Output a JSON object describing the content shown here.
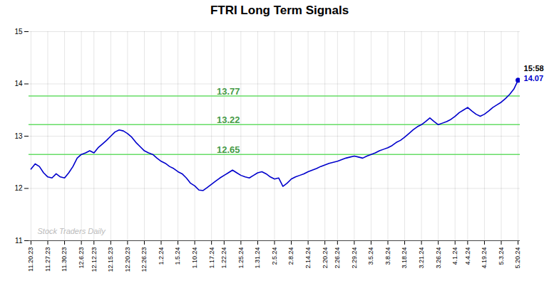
{
  "chart_data": {
    "type": "line",
    "title": "FTRI Long Term Signals",
    "categories": [
      "11.20.23",
      null,
      null,
      null,
      "11.27.23",
      null,
      null,
      null,
      "11.30.23",
      null,
      null,
      null,
      "12.6.23",
      null,
      null,
      "12.12.23",
      null,
      null,
      null,
      "12.15.23",
      null,
      null,
      null,
      "12.20.23",
      null,
      null,
      null,
      "12.26.23",
      null,
      null,
      null,
      "1.2.24",
      null,
      null,
      null,
      "1.5.24",
      null,
      null,
      null,
      "1.10.24",
      null,
      null,
      null,
      "1.17.24",
      null,
      null,
      "1.22.24",
      null,
      null,
      null,
      "1.25.24",
      null,
      null,
      null,
      "1.31.24",
      null,
      null,
      null,
      "2.5.24",
      null,
      null,
      null,
      "2.8.24",
      null,
      null,
      null,
      "2.14.24",
      null,
      null,
      null,
      "2.20.24",
      null,
      null,
      "2.26.24",
      null,
      null,
      null,
      "2.29.24",
      null,
      null,
      null,
      "3.5.24",
      null,
      null,
      null,
      "3.8.24",
      null,
      null,
      null,
      "3.18.24",
      null,
      null,
      null,
      "3.21.24",
      null,
      null,
      null,
      "3.26.24",
      null,
      null,
      null,
      "4.1.24",
      null,
      null,
      "4.4.24",
      null,
      null,
      null,
      "4.19.24",
      null,
      null,
      null,
      "5.3.24",
      null,
      null,
      null,
      "5.20.24"
    ],
    "values": [
      12.37,
      12.47,
      12.42,
      12.3,
      12.22,
      12.2,
      12.28,
      12.22,
      12.2,
      12.3,
      12.42,
      12.58,
      12.65,
      12.68,
      12.72,
      12.68,
      12.78,
      12.85,
      12.92,
      13.0,
      13.08,
      13.12,
      13.1,
      13.05,
      12.98,
      12.88,
      12.8,
      12.72,
      12.68,
      12.65,
      12.58,
      12.52,
      12.48,
      12.42,
      12.38,
      12.32,
      12.28,
      12.2,
      12.1,
      12.05,
      11.97,
      11.96,
      12.02,
      12.08,
      12.14,
      12.2,
      12.25,
      12.3,
      12.35,
      12.3,
      12.25,
      12.22,
      12.2,
      12.25,
      12.3,
      12.32,
      12.28,
      12.22,
      12.18,
      12.2,
      12.04,
      12.1,
      12.18,
      12.22,
      12.25,
      12.28,
      12.32,
      12.35,
      12.38,
      12.42,
      12.45,
      12.48,
      12.5,
      12.52,
      12.55,
      12.58,
      12.6,
      12.62,
      12.6,
      12.58,
      12.62,
      12.65,
      12.68,
      12.72,
      12.75,
      12.78,
      12.82,
      12.88,
      12.92,
      12.98,
      13.05,
      13.12,
      13.18,
      13.22,
      13.28,
      13.35,
      13.28,
      13.22,
      13.25,
      13.28,
      13.32,
      13.38,
      13.45,
      13.5,
      13.55,
      13.48,
      13.42,
      13.38,
      13.42,
      13.48,
      13.55,
      13.6,
      13.65,
      13.72,
      13.8,
      13.9,
      14.07
    ],
    "color": "#0000cc",
    "ylim": [
      11,
      15
    ],
    "yticks": [
      11,
      12,
      13,
      14,
      15
    ],
    "grid": true,
    "hlines": [
      {
        "y": 13.77,
        "label": "13.77",
        "color": "#66dd66"
      },
      {
        "y": 13.22,
        "label": "13.22",
        "color": "#66dd66"
      },
      {
        "y": 12.65,
        "label": "12.65",
        "color": "#66dd66"
      }
    ],
    "annotations": [
      {
        "text": "15:58",
        "color": "black"
      },
      {
        "text": "14.07",
        "color": "#0000cc"
      }
    ],
    "watermark": "Stock Traders Daily"
  }
}
